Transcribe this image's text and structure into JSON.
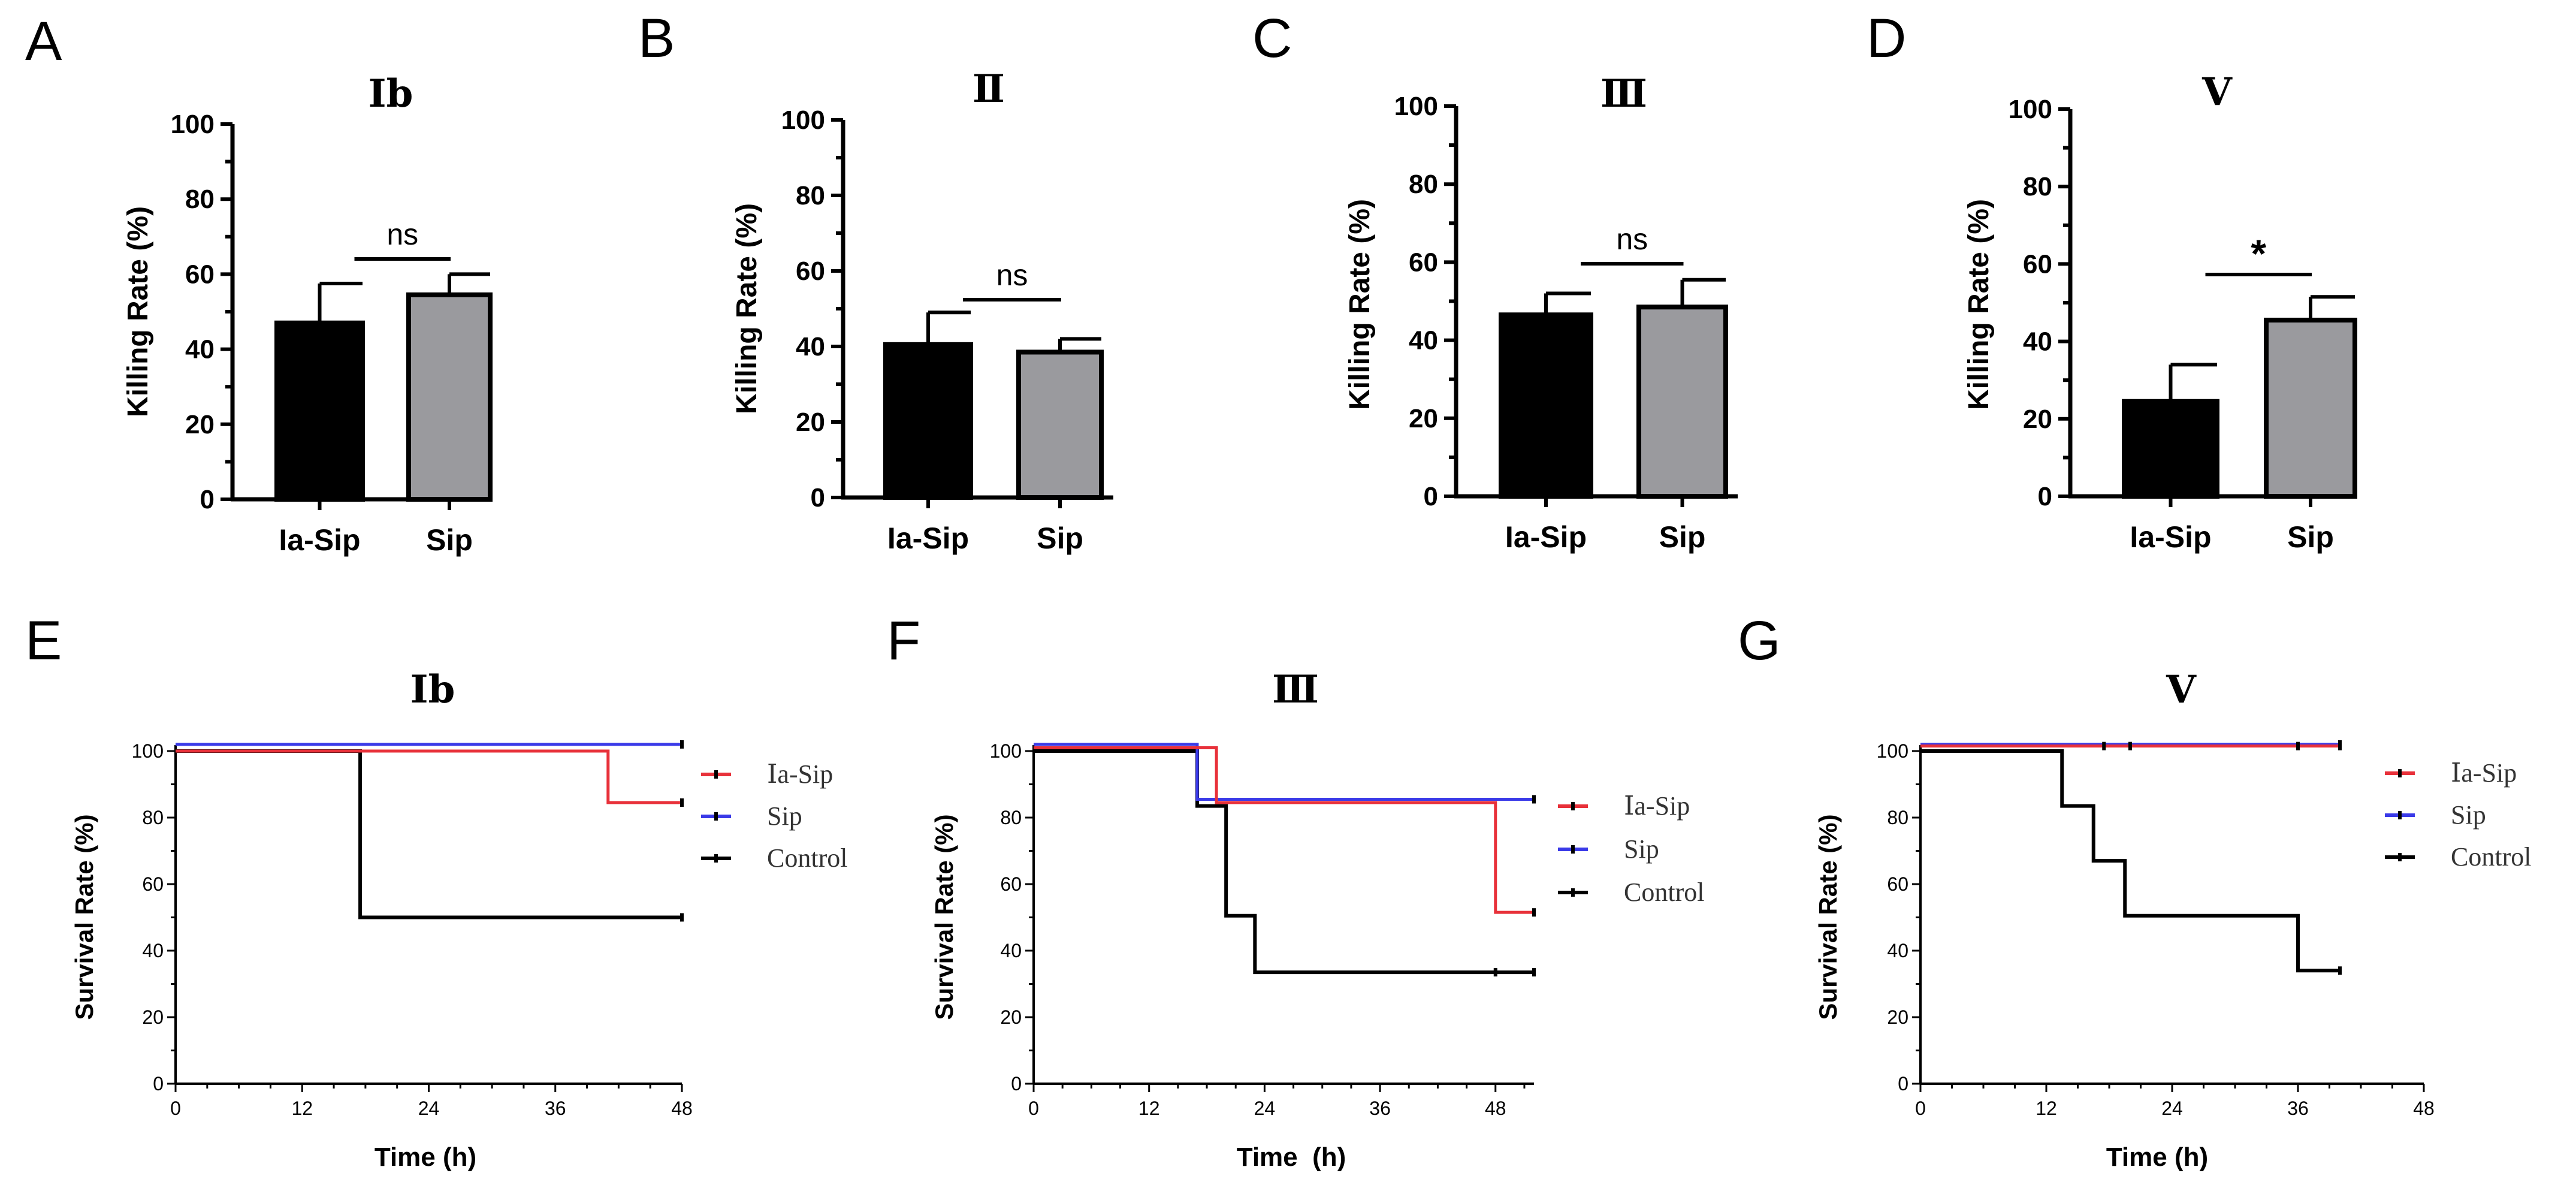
{
  "colors": {
    "black": "#000000",
    "bar_ia_sip": "#000000",
    "bar_sip": "#9a9a9e",
    "ia_sip_line": "#e8313a",
    "sip_line": "#3a3ae8",
    "control_line": "#000000"
  },
  "chart_data": [
    {
      "panel": "A",
      "type": "bar",
      "title": "Ib",
      "ylabel": "Killing Rate (%)",
      "xlabel": "",
      "ylim": [
        0,
        100
      ],
      "yticks": [
        "0",
        "20",
        "40",
        "60",
        "80",
        "100"
      ],
      "categories": [
        "Ia-Sip",
        "Sip"
      ],
      "values": [
        47,
        54.5
      ],
      "errors": [
        10.5,
        5.5
      ],
      "significance": "ns"
    },
    {
      "panel": "B",
      "type": "bar",
      "title": "Ⅱ",
      "ylabel": "Killing Rate (%)",
      "xlabel": "",
      "ylim": [
        0,
        100
      ],
      "yticks": [
        "0",
        "20",
        "40",
        "60",
        "80",
        "100"
      ],
      "categories": [
        "Ia-Sip",
        "Sip"
      ],
      "values": [
        40.5,
        38.5
      ],
      "errors": [
        8.5,
        3.5
      ],
      "significance": "ns"
    },
    {
      "panel": "C",
      "type": "bar",
      "title": "Ⅲ",
      "ylabel": "Killing Rate (%)",
      "xlabel": "",
      "ylim": [
        0,
        100
      ],
      "yticks": [
        "0",
        "20",
        "40",
        "60",
        "80",
        "100"
      ],
      "categories": [
        "Ia-Sip",
        "Sip"
      ],
      "values": [
        46.5,
        48.5
      ],
      "errors": [
        5.5,
        7
      ],
      "significance": "ns"
    },
    {
      "panel": "D",
      "type": "bar",
      "title": "Ⅴ",
      "ylabel": "Killing Rate (%)",
      "xlabel": "",
      "ylim": [
        0,
        100
      ],
      "yticks": [
        "0",
        "20",
        "40",
        "60",
        "80",
        "100"
      ],
      "categories": [
        "Ia-Sip",
        "Sip"
      ],
      "values": [
        24.5,
        45.5
      ],
      "errors": [
        9.5,
        6
      ],
      "significance": "*"
    },
    {
      "panel": "E",
      "type": "line",
      "title": "Ib",
      "ylabel": "Survival Rate (%)",
      "xlabel": "Time (h)",
      "xlim": [
        0,
        48
      ],
      "ylim": [
        0,
        100
      ],
      "xticks": [
        "0",
        "12",
        "24",
        "36",
        "48"
      ],
      "yticks": [
        "0",
        "20",
        "40",
        "60",
        "80",
        "100"
      ],
      "series": [
        {
          "name": "Ⅰa-Sip",
          "color": "#e8313a",
          "steps": [
            [
              0,
              100
            ],
            [
              41,
              100
            ],
            [
              41,
              84.5
            ],
            [
              48,
              84.5
            ]
          ],
          "censors": [
            [
              48,
              84.5
            ]
          ]
        },
        {
          "name": "Sip",
          "color": "#3a3ae8",
          "steps": [
            [
              0,
              102
            ],
            [
              48,
              102
            ]
          ],
          "censors": [
            [
              48,
              102
            ]
          ]
        },
        {
          "name": "Control",
          "color": "#000000",
          "steps": [
            [
              0,
              100
            ],
            [
              17.5,
              100
            ],
            [
              17.5,
              50
            ],
            [
              48,
              50
            ]
          ],
          "censors": [
            [
              48,
              50
            ]
          ]
        }
      ]
    },
    {
      "panel": "F",
      "type": "line",
      "title": "Ⅲ",
      "ylabel": "Survival Rate (%)",
      "xlabel": "Time  (h)",
      "xlim": [
        0,
        52
      ],
      "ylim": [
        0,
        100
      ],
      "xticks": [
        "0",
        "12",
        "24",
        "36",
        "48"
      ],
      "yticks": [
        "0",
        "20",
        "40",
        "60",
        "80",
        "100"
      ],
      "series": [
        {
          "name": "Ⅰa-Sip",
          "color": "#e8313a",
          "steps": [
            [
              0,
              101
            ],
            [
              19,
              101
            ],
            [
              19,
              84.5
            ],
            [
              48,
              84.5
            ],
            [
              48,
              51.5
            ],
            [
              52,
              51.5
            ]
          ],
          "censors": [
            [
              52,
              51.5
            ]
          ]
        },
        {
          "name": "Sip",
          "color": "#3a3ae8",
          "steps": [
            [
              0,
              102
            ],
            [
              17,
              102
            ],
            [
              17,
              85.5
            ],
            [
              52,
              85.5
            ]
          ],
          "censors": [
            [
              52,
              85.5
            ]
          ]
        },
        {
          "name": "Control",
          "color": "#000000",
          "steps": [
            [
              0,
              100
            ],
            [
              17,
              100
            ],
            [
              17,
              83.5
            ],
            [
              20,
              83.5
            ],
            [
              20,
              50.5
            ],
            [
              23,
              50.5
            ],
            [
              23,
              33.5
            ],
            [
              52,
              33.5
            ]
          ],
          "censors": [
            [
              48,
              33.5
            ],
            [
              52,
              33.5
            ]
          ]
        }
      ]
    },
    {
      "panel": "G",
      "type": "line",
      "title": "Ⅴ",
      "ylabel": "Survival Rate (%)",
      "xlabel": "Time (h)",
      "xlim": [
        0,
        48
      ],
      "ylim": [
        0,
        100
      ],
      "xticks": [
        "0",
        "12",
        "24",
        "36",
        "48"
      ],
      "yticks": [
        "0",
        "20",
        "40",
        "60",
        "80",
        "100"
      ],
      "series": [
        {
          "name": "Ⅰa-Sip",
          "color": "#e8313a",
          "steps": [
            [
              0,
              101.5
            ],
            [
              40,
              101.5
            ]
          ],
          "censors": [
            [
              17.5,
              101.5
            ],
            [
              20,
              101.5
            ],
            [
              36,
              101.5
            ],
            [
              40,
              101.5
            ]
          ]
        },
        {
          "name": "Sip",
          "color": "#3a3ae8",
          "steps": [
            [
              0,
              102
            ],
            [
              40,
              102
            ]
          ],
          "censors": [
            [
              40,
              102
            ]
          ]
        },
        {
          "name": "Control",
          "color": "#000000",
          "steps": [
            [
              0,
              100
            ],
            [
              13.5,
              100
            ],
            [
              13.5,
              83.5
            ],
            [
              16.5,
              83.5
            ],
            [
              16.5,
              67
            ],
            [
              19.5,
              67
            ],
            [
              19.5,
              50.5
            ],
            [
              36,
              50.5
            ],
            [
              36,
              34
            ],
            [
              40,
              34
            ]
          ],
          "censors": [
            [
              40,
              34
            ]
          ]
        }
      ]
    }
  ]
}
